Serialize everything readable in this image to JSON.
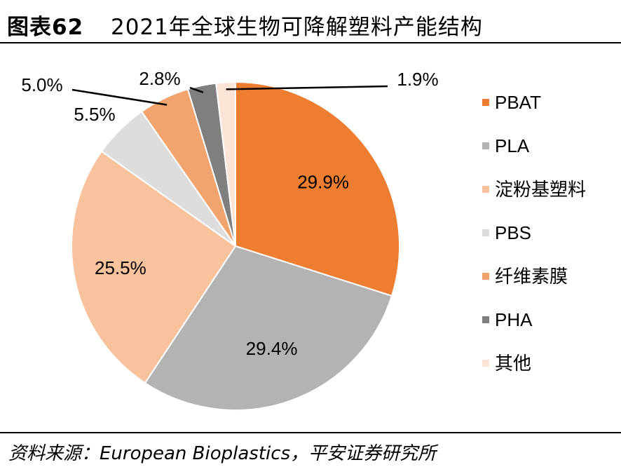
{
  "header": {
    "label": "图表62",
    "title": "2021年全球生物可降解塑料产能结构"
  },
  "chart_data": {
    "type": "pie",
    "categories": [
      "PBAT",
      "PLA",
      "淀粉基塑料",
      "PBS",
      "纤维素膜",
      "PHA",
      "其他"
    ],
    "values": [
      29.9,
      29.4,
      25.5,
      5.5,
      5.0,
      2.8,
      1.9
    ],
    "data_labels": [
      "29.9%",
      "29.4%",
      "25.5%",
      "5.5%",
      "5.0%",
      "2.8%",
      "1.9%"
    ],
    "colors": [
      "#ED7D31",
      "#B3B3B3",
      "#F8C29C",
      "#DDDDDD",
      "#F1A46E",
      "#7F7F7F",
      "#FCE4D6"
    ],
    "start_angle": "12 o'clock",
    "direction": "clockwise",
    "legend_position": "right"
  },
  "footer": {
    "source": "资料来源：European Bioplastics，平安证券研究所"
  }
}
